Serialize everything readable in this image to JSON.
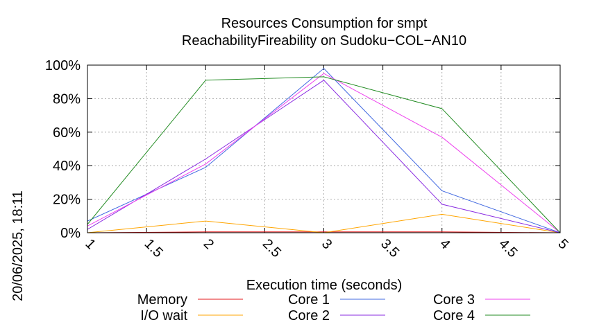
{
  "chart_data": {
    "type": "line",
    "title": "Resources Consumption for smpt",
    "subtitle": "ReachabilityFireability on Sudoku−COL−AN10",
    "xlabel": "Execution time (seconds)",
    "ylabel": "",
    "side_label": "20/06/2025, 18:11",
    "xlim": [
      1,
      5
    ],
    "ylim": [
      0,
      100
    ],
    "x_ticks": [
      "1",
      "1.5",
      "2",
      "2.5",
      "3",
      "3.5",
      "4",
      "4.5",
      "5"
    ],
    "y_ticks": [
      "0%",
      "20%",
      "40%",
      "60%",
      "80%",
      "100%"
    ],
    "grid": true,
    "legend_position": "bottom",
    "x": [
      1,
      2,
      3,
      4,
      5
    ],
    "series": [
      {
        "name": "Memory",
        "color": "#e41a1c",
        "values": [
          0,
          0.5,
          0.5,
          0.5,
          0
        ]
      },
      {
        "name": "I/O wait",
        "color": "#ffa500",
        "values": [
          0,
          7,
          0,
          11,
          0
        ]
      },
      {
        "name": "Core 1",
        "color": "#4169e1",
        "values": [
          7,
          39,
          98,
          25,
          0
        ]
      },
      {
        "name": "Core 2",
        "color": "#8a2be2",
        "values": [
          2,
          44,
          91,
          17,
          0
        ]
      },
      {
        "name": "Core 3",
        "color": "#ee40ee",
        "values": [
          4,
          41,
          95,
          57,
          0
        ]
      },
      {
        "name": "Core 4",
        "color": "#228b22",
        "values": [
          5,
          91,
          93,
          74,
          0
        ]
      }
    ]
  }
}
